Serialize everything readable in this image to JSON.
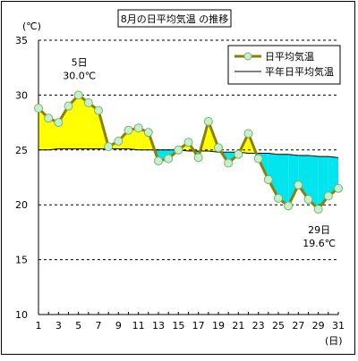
{
  "chart_data": {
    "type": "line",
    "title": "8月の日平均気温 の推移",
    "y_unit_label": "(℃)",
    "x_unit_label": "(日)",
    "ylim": [
      10,
      35
    ],
    "yticks": [
      10,
      15,
      20,
      25,
      30,
      35
    ],
    "xlim": [
      1,
      31
    ],
    "xticks": [
      1,
      3,
      5,
      7,
      9,
      11,
      13,
      15,
      17,
      19,
      21,
      23,
      25,
      27,
      29,
      31
    ],
    "grid": "horizontal-dashed",
    "legend_position": "top-right",
    "colors": {
      "actual_line": "#8b8000",
      "marker_fill": "#c8f0c8",
      "marker_stroke": "#7ab07a",
      "normal_line": "#000000",
      "above_fill": "#ffff00",
      "below_fill": "#00e5ee",
      "grid": "#000000",
      "title_border": "#000000"
    },
    "x": [
      1,
      2,
      3,
      4,
      5,
      6,
      7,
      8,
      9,
      10,
      11,
      12,
      13,
      14,
      15,
      16,
      17,
      18,
      19,
      20,
      21,
      22,
      23,
      24,
      25,
      26,
      27,
      28,
      29,
      30,
      31
    ],
    "series": [
      {
        "name": "日平均気温",
        "values": [
          28.8,
          27.9,
          27.5,
          29.0,
          30.0,
          29.3,
          28.6,
          25.3,
          25.8,
          26.8,
          27.0,
          26.6,
          24.0,
          24.2,
          25.0,
          25.7,
          24.3,
          27.6,
          25.2,
          23.8,
          24.6,
          26.5,
          24.2,
          22.3,
          20.6,
          19.9,
          21.8,
          20.5,
          19.6,
          20.8,
          21.5
        ]
      },
      {
        "name": "平年日平均気温",
        "values": [
          25.0,
          25.0,
          25.1,
          25.1,
          25.1,
          25.1,
          25.1,
          25.1,
          25.1,
          25.1,
          25.0,
          25.0,
          25.0,
          25.0,
          25.0,
          24.9,
          24.9,
          24.9,
          24.8,
          24.8,
          24.8,
          24.7,
          24.7,
          24.7,
          24.6,
          24.6,
          24.5,
          24.5,
          24.4,
          24.4,
          24.3
        ]
      }
    ],
    "annotations": [
      {
        "day": 5,
        "text_day": "5日",
        "text_value": "30.0℃"
      },
      {
        "day": 29,
        "text_day": "29日",
        "text_value": "19.6℃"
      }
    ]
  }
}
